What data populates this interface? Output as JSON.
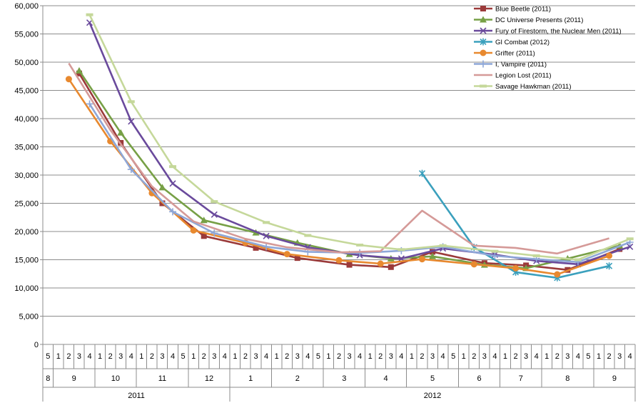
{
  "chart_data": {
    "type": "line",
    "title": "",
    "xlabel": "",
    "ylabel": "",
    "ylim": [
      0,
      60000
    ],
    "y_ticks": [
      "0",
      "5,000",
      "10,000",
      "15,000",
      "20,000",
      "25,000",
      "30,000",
      "35,000",
      "40,000",
      "45,000",
      "50,000",
      "55,000",
      "60,000"
    ],
    "grid": true,
    "legend_position": "top-right",
    "x_weeks": [
      "5",
      "1",
      "2",
      "3",
      "4",
      "1",
      "2",
      "3",
      "4",
      "1",
      "2",
      "3",
      "4",
      "5",
      "1",
      "2",
      "3",
      "4",
      "1",
      "2",
      "3",
      "4",
      "1",
      "2",
      "3",
      "4",
      "5",
      "1",
      "2",
      "3",
      "4",
      "1",
      "2",
      "3",
      "4",
      "1",
      "2",
      "3",
      "4",
      "5",
      "1",
      "2",
      "3",
      "4",
      "1",
      "2",
      "3",
      "4",
      "1",
      "2",
      "3",
      "4",
      "5",
      "1",
      "2",
      "3",
      "4"
    ],
    "x_months": [
      {
        "label": "8",
        "start": 0,
        "end": 0
      },
      {
        "label": "9",
        "start": 1,
        "end": 4
      },
      {
        "label": "10",
        "start": 5,
        "end": 8
      },
      {
        "label": "11",
        "start": 9,
        "end": 13
      },
      {
        "label": "12",
        "start": 14,
        "end": 17
      },
      {
        "label": "1",
        "start": 18,
        "end": 21
      },
      {
        "label": "2",
        "start": 22,
        "end": 26
      },
      {
        "label": "3",
        "start": 27,
        "end": 30
      },
      {
        "label": "4",
        "start": 31,
        "end": 34
      },
      {
        "label": "5",
        "start": 35,
        "end": 39
      },
      {
        "label": "6",
        "start": 40,
        "end": 43
      },
      {
        "label": "7",
        "start": 44,
        "end": 47
      },
      {
        "label": "8",
        "start": 48,
        "end": 52
      },
      {
        "label": "9",
        "start": 53,
        "end": 56
      }
    ],
    "x_years": [
      {
        "label": "2011",
        "start": 0,
        "end": 17
      },
      {
        "label": "2012",
        "start": 18,
        "end": 56
      }
    ],
    "series": [
      {
        "name": "Blue Beetle (2011)",
        "color": "#9b3a3a",
        "marker": "square",
        "points": [
          [
            3,
            48000
          ],
          [
            7,
            35700
          ],
          [
            11,
            25000
          ],
          [
            15,
            19200
          ],
          [
            20,
            17100
          ],
          [
            24,
            15300
          ],
          [
            29,
            14100
          ],
          [
            33,
            13700
          ],
          [
            37,
            16400
          ],
          [
            42,
            14400
          ],
          [
            46,
            14000
          ],
          [
            50,
            13200
          ],
          [
            55,
            16900
          ]
        ]
      },
      {
        "name": "DC Universe Presents (2011)",
        "color": "#77a046",
        "marker": "triangle",
        "points": [
          [
            3,
            48500
          ],
          [
            7,
            37500
          ],
          [
            11,
            27800
          ],
          [
            15,
            22000
          ],
          [
            20,
            19800
          ],
          [
            24,
            18000
          ],
          [
            29,
            16000
          ],
          [
            33,
            15200
          ],
          [
            37,
            15600
          ],
          [
            42,
            14100
          ],
          [
            46,
            13500
          ],
          [
            50,
            15200
          ],
          [
            55,
            17500
          ]
        ]
      },
      {
        "name": "Fury of Firestorm, the Nuclear Men (2011)",
        "color": "#6a4a9c",
        "marker": "x",
        "points": [
          [
            4,
            57000
          ],
          [
            8,
            39500
          ],
          [
            12,
            28500
          ],
          [
            16,
            23000
          ],
          [
            21,
            19200
          ],
          [
            25,
            17200
          ],
          [
            30,
            15800
          ],
          [
            34,
            15200
          ],
          [
            38,
            17000
          ],
          [
            43,
            15900
          ],
          [
            47,
            14800
          ],
          [
            51,
            14200
          ],
          [
            56,
            17300
          ]
        ]
      },
      {
        "name": "GI Combat (2012)",
        "color": "#3ba0bd",
        "marker": "star",
        "points": [
          [
            36,
            30300
          ],
          [
            41,
            17200
          ],
          [
            45,
            12800
          ],
          [
            49,
            11800
          ],
          [
            54,
            13900
          ]
        ]
      },
      {
        "name": "Grifter (2011)",
        "color": "#e8892f",
        "marker": "circle",
        "points": [
          [
            2,
            47000
          ],
          [
            6,
            36000
          ],
          [
            10,
            26800
          ],
          [
            14,
            20200
          ],
          [
            19,
            18000
          ],
          [
            23,
            16000
          ],
          [
            28,
            14900
          ],
          [
            32,
            14300
          ],
          [
            36,
            15100
          ],
          [
            41,
            14200
          ],
          [
            45,
            13500
          ],
          [
            49,
            12400
          ],
          [
            54,
            15700
          ]
        ]
      },
      {
        "name": "I, Vampire (2011)",
        "color": "#8ea7d8",
        "marker": "plus",
        "points": [
          [
            4,
            42600
          ],
          [
            8,
            31000
          ],
          [
            12,
            23500
          ],
          [
            16,
            19700
          ],
          [
            21,
            17300
          ],
          [
            25,
            16400
          ],
          [
            30,
            16200
          ],
          [
            34,
            16600
          ],
          [
            38,
            17300
          ],
          [
            43,
            15700
          ],
          [
            47,
            15100
          ],
          [
            51,
            14600
          ],
          [
            56,
            18100
          ]
        ]
      },
      {
        "name": "Legion Lost (2011)",
        "color": "#d59a98",
        "marker": "none",
        "points": [
          [
            2,
            49800
          ],
          [
            6,
            38000
          ],
          [
            10,
            28000
          ],
          [
            14,
            21800
          ],
          [
            19,
            18700
          ],
          [
            23,
            17200
          ],
          [
            28,
            16300
          ],
          [
            32,
            16500
          ],
          [
            36,
            23700
          ],
          [
            41,
            17500
          ],
          [
            45,
            17100
          ],
          [
            49,
            16100
          ],
          [
            54,
            18800
          ]
        ]
      },
      {
        "name": "Savage Hawkman (2011)",
        "color": "#c5d89a",
        "marker": "dash",
        "points": [
          [
            4,
            58400
          ],
          [
            8,
            43000
          ],
          [
            12,
            31500
          ],
          [
            16,
            25300
          ],
          [
            21,
            21600
          ],
          [
            25,
            19300
          ],
          [
            30,
            17600
          ],
          [
            34,
            16800
          ],
          [
            38,
            17500
          ],
          [
            43,
            16500
          ],
          [
            47,
            15700
          ],
          [
            51,
            15000
          ],
          [
            56,
            18700
          ]
        ]
      }
    ]
  }
}
